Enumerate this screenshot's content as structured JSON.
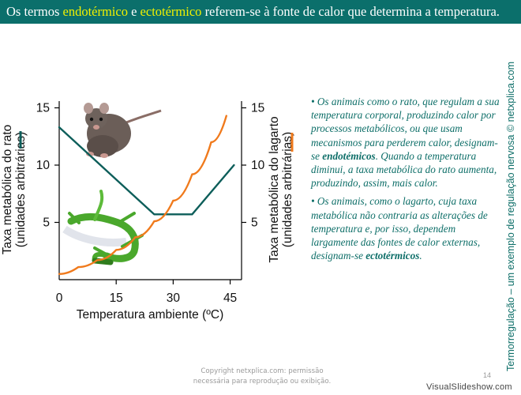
{
  "title": {
    "part1": "Os termos ",
    "term1": "endotérmico",
    "part2": " e ",
    "term2": "ectotérmico",
    "part3": " referem-se à fonte de calor que determina a temperatura."
  },
  "colors": {
    "title_bg": "#0b6f6b",
    "highlight": "#f0f000",
    "rat_series": "#0d5e5a",
    "lizard_series": "#f07a1c",
    "body_text": "#0d6e68"
  },
  "chart_data": {
    "type": "line",
    "xlabel": "Temperatura ambiente (ºC)",
    "ylabel_left": [
      "Taxa metabólica do rato",
      "(unidades arbitrárias)"
    ],
    "ylabel_right": [
      "Taxa metabólica do lagarto",
      "(unidades arbitrárias)"
    ],
    "x_ticks": [
      "0",
      "15",
      "30",
      "45"
    ],
    "y_ticks_left": [
      "5",
      "10",
      "15"
    ],
    "y_ticks_right": [
      "5",
      "10",
      "15"
    ],
    "xlim": [
      0,
      48
    ],
    "ylim": [
      0,
      16
    ],
    "grid": false,
    "series": [
      {
        "axis": "left",
        "color": "#0d5e5a",
        "x": [
          0,
          25,
          35,
          46
        ],
        "y": [
          13.3,
          5.7,
          5.7,
          10.0
        ]
      },
      {
        "axis": "right",
        "color": "#f07a1c",
        "x": [
          0,
          5,
          10,
          15,
          20,
          25,
          30,
          35,
          40,
          44
        ],
        "y": [
          0.5,
          1.1,
          1.7,
          2.6,
          3.7,
          5.1,
          6.9,
          9.2,
          12.0,
          14.3
        ]
      }
    ]
  },
  "icons": {
    "rat": "rat-image",
    "lizard": "lizard-image"
  },
  "bullets": {
    "b1_intro": "• Os animais como o rato, que regulam a sua temperatura corporal, produzindo calor por processos metabólicos, ou que usam mecanismos para perderem calor, designam-se ",
    "b1_term": "endotémicos",
    "b1_outro": ". Quando a temperatura diminui, a taxa metabólica do rato aumenta, produzindo, assim, mais calor.",
    "b2_intro": "• Os animais, como o lagarto, cuja taxa metabólica não contraria as alterações de temperatura e, por isso, dependem largamente das fontes de calor externas, designam-se ",
    "b2_term": "ectotérmicos",
    "b2_outro": "."
  },
  "side_text": "Termorregulação – um exemplo de regulação nervosa © netxplica.com",
  "footer": {
    "copyright_line1": "Copyright netxplica.com: permissão",
    "copyright_line2": "necessária para reprodução ou exibição.",
    "page_number": "14",
    "watermark": "VisualSlideshow.com"
  }
}
